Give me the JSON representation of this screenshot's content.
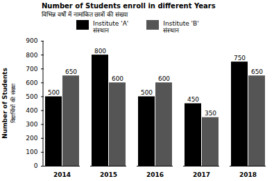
{
  "chart_data": {
    "type": "bar",
    "title": "Number of Students enroll in different Years",
    "subtitle": "विभिन्न वर्षों में नामांकित छात्रों की संख्या",
    "ylabel": "Number of Students\nविद्यार्थियों की संख्या",
    "categories": [
      "2014",
      "2015",
      "2016",
      "2017",
      "2018"
    ],
    "series": [
      {
        "name": "Institute 'A'\nसंस्थान",
        "color": "#000000",
        "values": [
          500,
          800,
          500,
          450,
          750
        ]
      },
      {
        "name": "Institute 'B'\nसंस्थान",
        "color": "#555555",
        "values": [
          650,
          600,
          600,
          350,
          650
        ]
      }
    ],
    "ylim": [
      0,
      900
    ],
    "yticks": [
      0,
      100,
      200,
      300,
      400,
      500,
      600,
      700,
      800,
      900
    ],
    "grid": false,
    "legend": "top",
    "data_labels": true
  }
}
